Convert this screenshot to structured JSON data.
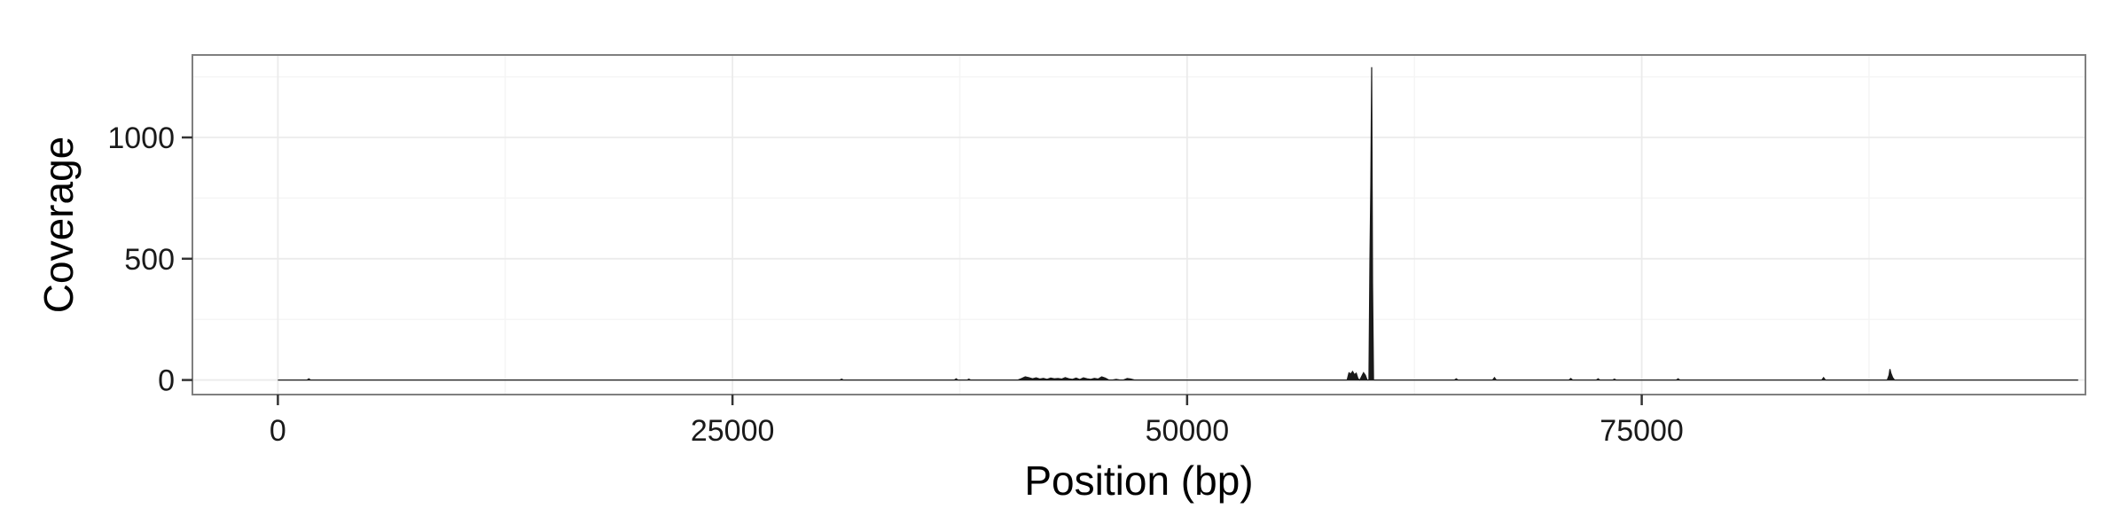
{
  "chart_data": {
    "type": "area",
    "title": "",
    "xlabel": "Position (bp)",
    "ylabel": "Coverage",
    "xlim": [
      -4700,
      99400
    ],
    "ylim": [
      -60,
      1340
    ],
    "x_ticks": [
      0,
      25000,
      50000,
      75000
    ],
    "x_tick_labels": [
      "0",
      "25000",
      "50000",
      "75000"
    ],
    "y_ticks": [
      0,
      500,
      1000
    ],
    "y_tick_labels": [
      "0",
      "500",
      "1000"
    ],
    "grid": true,
    "legend": "none",
    "colors": {
      "series": "#1a1a1a",
      "grid_major": "#ebebeb",
      "grid_minor": "#f5f5f5",
      "panel_border": "#7f7f7f",
      "tick": "#333333"
    },
    "series": [
      {
        "x": [
          0,
          1600,
          1700,
          1800,
          30900,
          31000,
          31100,
          37200,
          37300,
          37400,
          37900,
          38000,
          38100,
          40700,
          40900,
          41100,
          41300,
          41500,
          41700,
          41900,
          42100,
          42300,
          42500,
          42700,
          42900,
          43100,
          43300,
          43500,
          43700,
          43900,
          44100,
          44300,
          44500,
          44700,
          44900,
          45100,
          45300,
          45500,
          45700,
          45900,
          46100,
          46300,
          46500,
          46700,
          46900,
          47100,
          47300,
          58800,
          58900,
          59000,
          59100,
          59200,
          59300,
          59400,
          59500,
          59600,
          59700,
          59800,
          59900,
          60000,
          60050,
          60100,
          60150,
          60200,
          60250,
          60300,
          60400,
          60500,
          64700,
          64800,
          64900,
          66800,
          66900,
          67000,
          71000,
          71100,
          71200,
          72500,
          72600,
          72700,
          73400,
          73500,
          73600,
          76900,
          77000,
          77100,
          84900,
          85000,
          85100,
          88500,
          88600,
          88650,
          88700,
          88800,
          88900,
          99000
        ],
        "values": [
          0,
          0,
          5,
          0,
          0,
          4,
          0,
          0,
          5,
          0,
          0,
          4,
          0,
          0,
          6,
          13,
          10,
          5,
          9,
          4,
          7,
          3,
          8,
          5,
          6,
          4,
          10,
          5,
          3,
          8,
          2,
          9,
          5,
          3,
          7,
          4,
          13,
          8,
          0,
          0,
          3,
          0,
          0,
          6,
          4,
          0,
          0,
          0,
          30,
          25,
          35,
          22,
          28,
          5,
          0,
          15,
          30,
          20,
          0,
          0,
          480,
          800,
          1290,
          400,
          0,
          0,
          0,
          0,
          0,
          5,
          0,
          0,
          10,
          0,
          0,
          6,
          0,
          0,
          5,
          0,
          0,
          4,
          0,
          0,
          5,
          0,
          0,
          10,
          0,
          0,
          20,
          45,
          28,
          10,
          0,
          0
        ]
      }
    ]
  }
}
